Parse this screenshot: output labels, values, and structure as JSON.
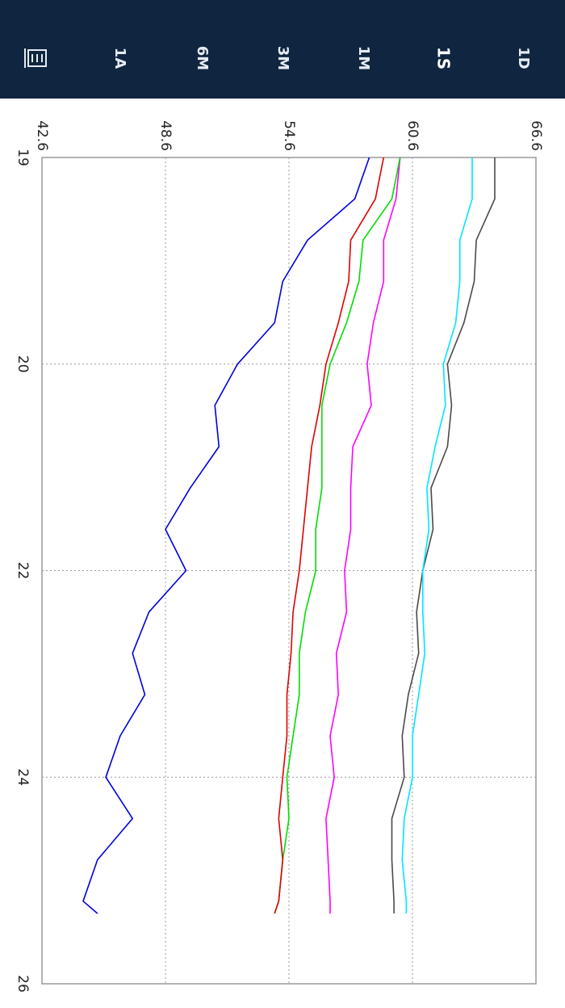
{
  "tabs": [
    "1D",
    "1S",
    "1M",
    "3M",
    "6M",
    "1A"
  ],
  "active_tab": "1S",
  "chart_data": {
    "type": "line",
    "x": [
      0,
      0.2,
      0.4,
      0.6,
      0.8,
      1.0,
      1.2,
      1.4,
      1.6,
      1.8,
      2.0,
      2.2,
      2.4,
      2.6,
      2.8,
      3.0,
      3.2,
      3.4,
      3.6,
      3.66
    ],
    "series": [
      {
        "color": "#4a4a4a",
        "values": [
          64.6,
          64.6,
          63.7,
          63.6,
          63.1,
          62.3,
          62.5,
          62.3,
          61.5,
          61.6,
          61.1,
          60.8,
          60.9,
          60.4,
          60.1,
          60.2,
          59.6,
          59.6,
          59.7,
          59.7
        ]
      },
      {
        "color": "#00e5ff",
        "values": [
          63.5,
          63.5,
          62.9,
          62.9,
          62.7,
          62.1,
          62.2,
          61.7,
          61.3,
          61.4,
          61.1,
          61.1,
          61.2,
          60.9,
          60.6,
          60.6,
          60.2,
          60.1,
          60.3,
          60.3
        ]
      },
      {
        "color": "#ff00ff",
        "values": [
          60.0,
          59.8,
          59.2,
          59.2,
          58.7,
          58.4,
          58.6,
          57.7,
          57.6,
          57.6,
          57.3,
          57.4,
          56.9,
          57.0,
          56.6,
          56.8,
          56.4,
          56.5,
          56.6,
          56.6
        ]
      },
      {
        "color": "#00dd00",
        "values": [
          60.0,
          59.6,
          58.2,
          58.0,
          57.4,
          56.6,
          56.2,
          56.2,
          56.2,
          55.9,
          55.9,
          55.4,
          55.1,
          55.1,
          54.8,
          54.5,
          54.6,
          54.3,
          54.1,
          53.9
        ]
      },
      {
        "color": "#e00000",
        "values": [
          59.2,
          58.8,
          57.6,
          57.5,
          57.0,
          56.4,
          56.1,
          55.7,
          55.5,
          55.3,
          55.1,
          54.8,
          54.7,
          54.5,
          54.5,
          54.3,
          54.1,
          54.3,
          54.1,
          53.9
        ]
      },
      {
        "color": "#0000dd",
        "values": [
          58.5,
          57.8,
          55.5,
          54.3,
          53.9,
          52.1,
          51.0,
          51.2,
          49.8,
          48.6,
          49.6,
          47.8,
          47.0,
          47.6,
          46.4,
          45.7,
          47.0,
          45.3,
          44.6,
          45.3
        ]
      }
    ],
    "xlim": [
      0,
      4
    ],
    "xticks": [
      {
        "value": 0,
        "label": "19"
      },
      {
        "value": 1,
        "label": "20"
      },
      {
        "value": 2,
        "label": "22"
      },
      {
        "value": 3,
        "label": "24"
      },
      {
        "value": 4,
        "label": "26"
      }
    ],
    "ylim": [
      42.6,
      66.6
    ],
    "yticks": [
      42.6,
      48.6,
      54.6,
      60.6,
      66.6
    ],
    "grid": true
  }
}
